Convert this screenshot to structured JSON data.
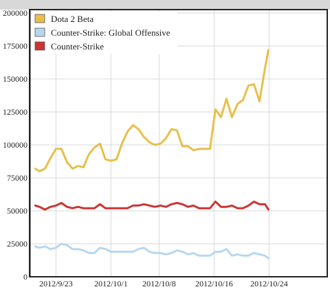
{
  "chart_data": {
    "type": "line",
    "title": "",
    "xlabel": "",
    "ylabel": "",
    "ylim": [
      0,
      200000
    ],
    "y_ticks": [
      0,
      25000,
      50000,
      75000,
      100000,
      125000,
      150000,
      175000,
      200000
    ],
    "y_tick_labels": [
      "0",
      "25000",
      "50000",
      "75000",
      "100000",
      "125000",
      "150000",
      "175000",
      "200000"
    ],
    "x_start": "2012-09-16",
    "x_ticks": [
      {
        "day": 7,
        "label": "2012/9/23"
      },
      {
        "day": 15,
        "label": "2012/10/1"
      },
      {
        "day": 22,
        "label": "2012/10/8"
      },
      {
        "day": 30,
        "label": "2012/10/16"
      },
      {
        "day": 38,
        "label": "2012/10/24"
      }
    ],
    "x_range_days": [
      4,
      46
    ],
    "grid": true,
    "legend_position": "top-left",
    "series": [
      {
        "name": "Dota 2 Beta",
        "color": "#e8bf4a",
        "values": [
          [
            4.0,
            82000
          ],
          [
            4.6,
            80000
          ],
          [
            5.4,
            82000
          ],
          [
            6.2,
            90000
          ],
          [
            7.0,
            97000
          ],
          [
            7.8,
            97000
          ],
          [
            8.6,
            87000
          ],
          [
            9.4,
            82000
          ],
          [
            10.2,
            84000
          ],
          [
            11.0,
            83000
          ],
          [
            11.8,
            93000
          ],
          [
            12.6,
            98000
          ],
          [
            13.4,
            101000
          ],
          [
            14.2,
            89000
          ],
          [
            15.0,
            88000
          ],
          [
            15.8,
            89000
          ],
          [
            16.6,
            101000
          ],
          [
            17.4,
            110000
          ],
          [
            18.2,
            115000
          ],
          [
            19.0,
            112000
          ],
          [
            19.8,
            106000
          ],
          [
            20.6,
            102000
          ],
          [
            21.4,
            100000
          ],
          [
            22.2,
            101000
          ],
          [
            23.0,
            105000
          ],
          [
            23.8,
            112000
          ],
          [
            24.6,
            111000
          ],
          [
            25.4,
            99000
          ],
          [
            26.2,
            99000
          ],
          [
            27.0,
            96000
          ],
          [
            27.8,
            97000
          ],
          [
            28.6,
            97000
          ],
          [
            29.4,
            97000
          ],
          [
            30.2,
            127000
          ],
          [
            31.0,
            121000
          ],
          [
            31.8,
            135000
          ],
          [
            32.6,
            121000
          ],
          [
            33.4,
            131000
          ],
          [
            34.2,
            134000
          ],
          [
            35.0,
            145000
          ],
          [
            35.8,
            146000
          ],
          [
            36.6,
            133000
          ],
          [
            37.4,
            158000
          ],
          [
            37.9,
            172000
          ]
        ]
      },
      {
        "name": "Counter-Strike: Global Offensive",
        "color": "#b7d7f0",
        "values": [
          [
            4.0,
            23000
          ],
          [
            4.6,
            22000
          ],
          [
            5.4,
            23000
          ],
          [
            6.2,
            21000
          ],
          [
            7.0,
            22000
          ],
          [
            7.8,
            25000
          ],
          [
            8.6,
            24000
          ],
          [
            9.4,
            21000
          ],
          [
            10.2,
            21000
          ],
          [
            11.0,
            20000
          ],
          [
            11.8,
            18000
          ],
          [
            12.6,
            18000
          ],
          [
            13.4,
            22000
          ],
          [
            14.2,
            21000
          ],
          [
            15.0,
            19000
          ],
          [
            15.8,
            19000
          ],
          [
            16.6,
            19000
          ],
          [
            17.4,
            19000
          ],
          [
            18.2,
            19000
          ],
          [
            19.0,
            21000
          ],
          [
            19.8,
            22000
          ],
          [
            20.6,
            19000
          ],
          [
            21.4,
            18000
          ],
          [
            22.2,
            18000
          ],
          [
            23.0,
            17000
          ],
          [
            23.8,
            18000
          ],
          [
            24.6,
            20000
          ],
          [
            25.4,
            19000
          ],
          [
            26.2,
            17000
          ],
          [
            27.0,
            18000
          ],
          [
            27.8,
            16000
          ],
          [
            28.6,
            16000
          ],
          [
            29.4,
            16000
          ],
          [
            30.2,
            19000
          ],
          [
            31.0,
            19000
          ],
          [
            31.8,
            21000
          ],
          [
            32.6,
            16000
          ],
          [
            33.4,
            17000
          ],
          [
            34.2,
            16000
          ],
          [
            35.0,
            16000
          ],
          [
            35.8,
            18000
          ],
          [
            36.6,
            17000
          ],
          [
            37.4,
            16000
          ],
          [
            37.9,
            14000
          ]
        ]
      },
      {
        "name": "Counter-Strike",
        "color": "#cc3333",
        "values": [
          [
            4.0,
            54000
          ],
          [
            4.6,
            53000
          ],
          [
            5.4,
            51000
          ],
          [
            6.2,
            53000
          ],
          [
            7.0,
            54000
          ],
          [
            7.8,
            56000
          ],
          [
            8.6,
            53000
          ],
          [
            9.4,
            52000
          ],
          [
            10.2,
            53000
          ],
          [
            11.0,
            52000
          ],
          [
            11.8,
            52000
          ],
          [
            12.6,
            52000
          ],
          [
            13.4,
            55000
          ],
          [
            14.2,
            52000
          ],
          [
            15.0,
            52000
          ],
          [
            15.8,
            52000
          ],
          [
            16.6,
            52000
          ],
          [
            17.4,
            52000
          ],
          [
            18.2,
            54000
          ],
          [
            19.0,
            54000
          ],
          [
            19.8,
            55000
          ],
          [
            20.6,
            54000
          ],
          [
            21.4,
            53000
          ],
          [
            22.2,
            54000
          ],
          [
            23.0,
            53000
          ],
          [
            23.8,
            55000
          ],
          [
            24.6,
            56000
          ],
          [
            25.4,
            55000
          ],
          [
            26.2,
            53000
          ],
          [
            27.0,
            54000
          ],
          [
            27.8,
            52000
          ],
          [
            28.6,
            52000
          ],
          [
            29.4,
            52000
          ],
          [
            30.2,
            57000
          ],
          [
            31.0,
            53000
          ],
          [
            31.8,
            53000
          ],
          [
            32.6,
            54000
          ],
          [
            33.4,
            52000
          ],
          [
            34.2,
            52000
          ],
          [
            35.0,
            54000
          ],
          [
            35.8,
            57000
          ],
          [
            36.6,
            55000
          ],
          [
            37.4,
            55000
          ],
          [
            37.9,
            51000
          ]
        ]
      }
    ]
  }
}
